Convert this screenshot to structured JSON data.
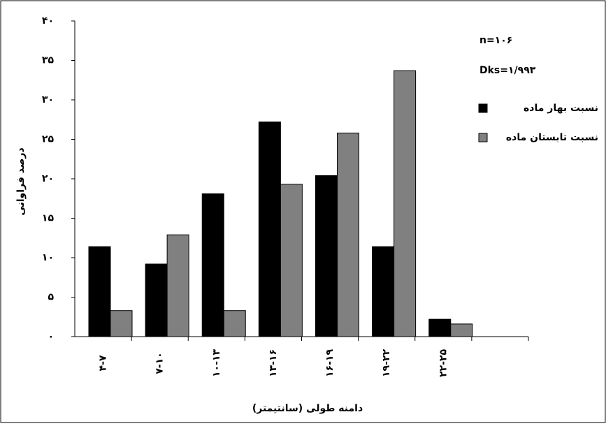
{
  "chart_data": {
    "type": "bar",
    "x_label": "دامنه طولی (سانتیمتر)",
    "y_label": "درصد فراوانی",
    "annotations": [
      "n=۱۰۶",
      "Dks=۱/۹۹۳"
    ],
    "categories": [
      "۴-۷",
      "۷-۱۰",
      "۱۰-۱۳",
      "۱۳-۱۶",
      "۱۶-۱۹",
      "۱۹-۲۲",
      "۲۲-۲۵",
      null
    ],
    "series": [
      {
        "name": "نسبت بهار ماده",
        "color": "#000000",
        "values": [
          11.4,
          9.2,
          18.1,
          27.2,
          20.4,
          11.4,
          2.2,
          null
        ]
      },
      {
        "name": "نسبت تابستان ماده",
        "color": "#808080",
        "values": [
          3.3,
          12.9,
          3.3,
          19.3,
          25.8,
          33.7,
          1.6,
          null
        ]
      }
    ],
    "ylim": [
      0,
      40
    ],
    "yticks": [
      {
        "value": 0,
        "label": "۰"
      },
      {
        "value": 5,
        "label": "۵"
      },
      {
        "value": 10,
        "label": "۱۰"
      },
      {
        "value": 15,
        "label": "۱۵"
      },
      {
        "value": 20,
        "label": "۲۰"
      },
      {
        "value": 25,
        "label": "۲۵"
      },
      {
        "value": 30,
        "label": "۳۰"
      },
      {
        "value": 35,
        "label": "۳۵"
      },
      {
        "value": 40,
        "label": "۴۰"
      }
    ],
    "grid": false,
    "legend": "right"
  }
}
